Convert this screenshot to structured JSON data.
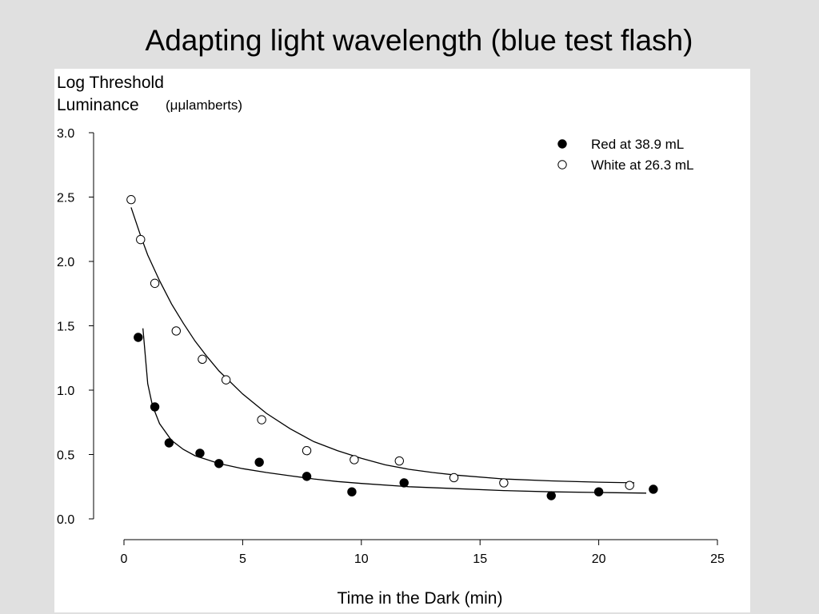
{
  "slide": {
    "title": "Adapting light wavelength (blue test flash)"
  },
  "chart_data": {
    "type": "scatter",
    "title": "Adapting light wavelength (blue test flash)",
    "ylabel_line1": "Log Threshold",
    "ylabel_line2": "Luminance",
    "ylabel_unit": "(μμlamberts)",
    "xlabel": "Time in the Dark (min)",
    "xlim": [
      0,
      25
    ],
    "ylim": [
      0.0,
      3.0
    ],
    "x_ticks": [
      "0",
      "5",
      "10",
      "15",
      "20",
      "25"
    ],
    "y_ticks": [
      "0.0",
      "0.5",
      "1.0",
      "1.5",
      "2.0",
      "2.5",
      "3.0"
    ],
    "grid": false,
    "legend_position": "top-right",
    "series": [
      {
        "name": "Red at 38.9 mL",
        "marker": "filled-circle",
        "color": "#000000",
        "points": [
          [
            0.6,
            1.41
          ],
          [
            1.3,
            0.87
          ],
          [
            1.9,
            0.59
          ],
          [
            3.2,
            0.51
          ],
          [
            4.0,
            0.43
          ],
          [
            5.7,
            0.44
          ],
          [
            7.7,
            0.33
          ],
          [
            9.6,
            0.21
          ],
          [
            11.8,
            0.28
          ],
          [
            18.0,
            0.18
          ],
          [
            20.0,
            0.21
          ],
          [
            22.3,
            0.23
          ]
        ],
        "curve": [
          [
            0.8,
            1.48
          ],
          [
            1.0,
            1.05
          ],
          [
            1.2,
            0.88
          ],
          [
            1.5,
            0.74
          ],
          [
            2.0,
            0.61
          ],
          [
            2.5,
            0.54
          ],
          [
            3.0,
            0.49
          ],
          [
            4.0,
            0.43
          ],
          [
            5.0,
            0.39
          ],
          [
            6.0,
            0.36
          ],
          [
            7.0,
            0.335
          ],
          [
            8.0,
            0.31
          ],
          [
            9.0,
            0.29
          ],
          [
            10.0,
            0.275
          ],
          [
            12.0,
            0.25
          ],
          [
            14.0,
            0.235
          ],
          [
            16.0,
            0.22
          ],
          [
            18.0,
            0.21
          ],
          [
            20.0,
            0.205
          ],
          [
            22.0,
            0.2
          ]
        ]
      },
      {
        "name": "White at 26.3 mL",
        "marker": "open-circle",
        "color": "#000000",
        "points": [
          [
            0.3,
            2.48
          ],
          [
            0.7,
            2.17
          ],
          [
            1.3,
            1.83
          ],
          [
            2.2,
            1.46
          ],
          [
            3.3,
            1.24
          ],
          [
            4.3,
            1.08
          ],
          [
            5.8,
            0.77
          ],
          [
            7.7,
            0.53
          ],
          [
            9.7,
            0.46
          ],
          [
            11.6,
            0.45
          ],
          [
            13.9,
            0.32
          ],
          [
            16.0,
            0.28
          ],
          [
            21.3,
            0.26
          ]
        ],
        "curve": [
          [
            0.3,
            2.42
          ],
          [
            0.7,
            2.2
          ],
          [
            1.0,
            2.05
          ],
          [
            1.5,
            1.85
          ],
          [
            2.0,
            1.67
          ],
          [
            2.5,
            1.52
          ],
          [
            3.0,
            1.38
          ],
          [
            3.5,
            1.26
          ],
          [
            4.0,
            1.15
          ],
          [
            5.0,
            0.97
          ],
          [
            6.0,
            0.82
          ],
          [
            7.0,
            0.7
          ],
          [
            8.0,
            0.6
          ],
          [
            9.0,
            0.53
          ],
          [
            10.0,
            0.47
          ],
          [
            11.0,
            0.42
          ],
          [
            12.0,
            0.385
          ],
          [
            13.0,
            0.36
          ],
          [
            14.0,
            0.34
          ],
          [
            16.0,
            0.31
          ],
          [
            18.0,
            0.295
          ],
          [
            20.0,
            0.285
          ],
          [
            21.5,
            0.28
          ]
        ]
      }
    ]
  }
}
